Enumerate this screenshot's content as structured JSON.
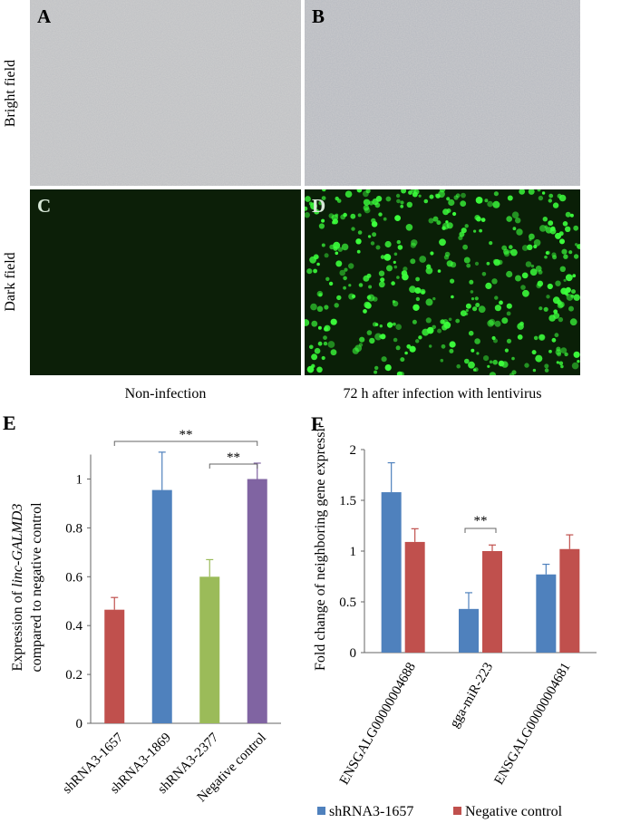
{
  "panels": {
    "A": "A",
    "B": "B",
    "C": "C",
    "D": "D",
    "row_labels": [
      "Bright field",
      "Dark field"
    ],
    "col_labels": [
      "Non-infection",
      "72 h after infection with lentivirus"
    ],
    "colors": {
      "bright": "#c9c9c9",
      "dark_bg": "#0a1f07",
      "dots": "#3cff3c"
    }
  },
  "chart_data": [
    {
      "type": "bar",
      "panel_letter": "E",
      "ylabel_parts": [
        "Expression of ",
        "linc-GALMD3",
        "compared to negative control"
      ],
      "categories": [
        "shRNA3-1657",
        "shRNA3-1869",
        "shRNA3-2377",
        "Negative control"
      ],
      "values": [
        0.465,
        0.955,
        0.6,
        1.0
      ],
      "errors": [
        0.05,
        0.155,
        0.07,
        0.065
      ],
      "colors": [
        "#c0504d",
        "#4f81bd",
        "#9bbb59",
        "#8064a2"
      ],
      "ylim": [
        0,
        1.1
      ],
      "yticks": [
        "0",
        "0.2",
        "0.4",
        "0.6",
        "0.8",
        "1"
      ],
      "significance": [
        {
          "from": 0,
          "to": 3,
          "label": "**"
        },
        {
          "from": 2,
          "to": 3,
          "label": "**"
        }
      ]
    },
    {
      "type": "bar",
      "panel_letter": "F",
      "ylabel": "Fold change of neighboring gene expression",
      "categories": [
        "ENSGALG00000004688",
        "gga-miR-223",
        "ENSGALG00000004681"
      ],
      "series": [
        {
          "name": "shRNA3-1657",
          "color": "#4f81bd",
          "values": [
            1.58,
            0.43,
            0.77
          ],
          "errors": [
            0.29,
            0.16,
            0.1
          ]
        },
        {
          "name": "Negative control",
          "color": "#c0504d",
          "values": [
            1.09,
            1.0,
            1.02
          ],
          "errors": [
            0.13,
            0.06,
            0.14
          ]
        }
      ],
      "ylim": [
        0,
        2
      ],
      "yticks": [
        "0",
        "0.5",
        "1",
        "1.5",
        "2"
      ],
      "significance": [
        {
          "group": 1,
          "label": "**"
        }
      ],
      "legend": "bottom"
    }
  ]
}
